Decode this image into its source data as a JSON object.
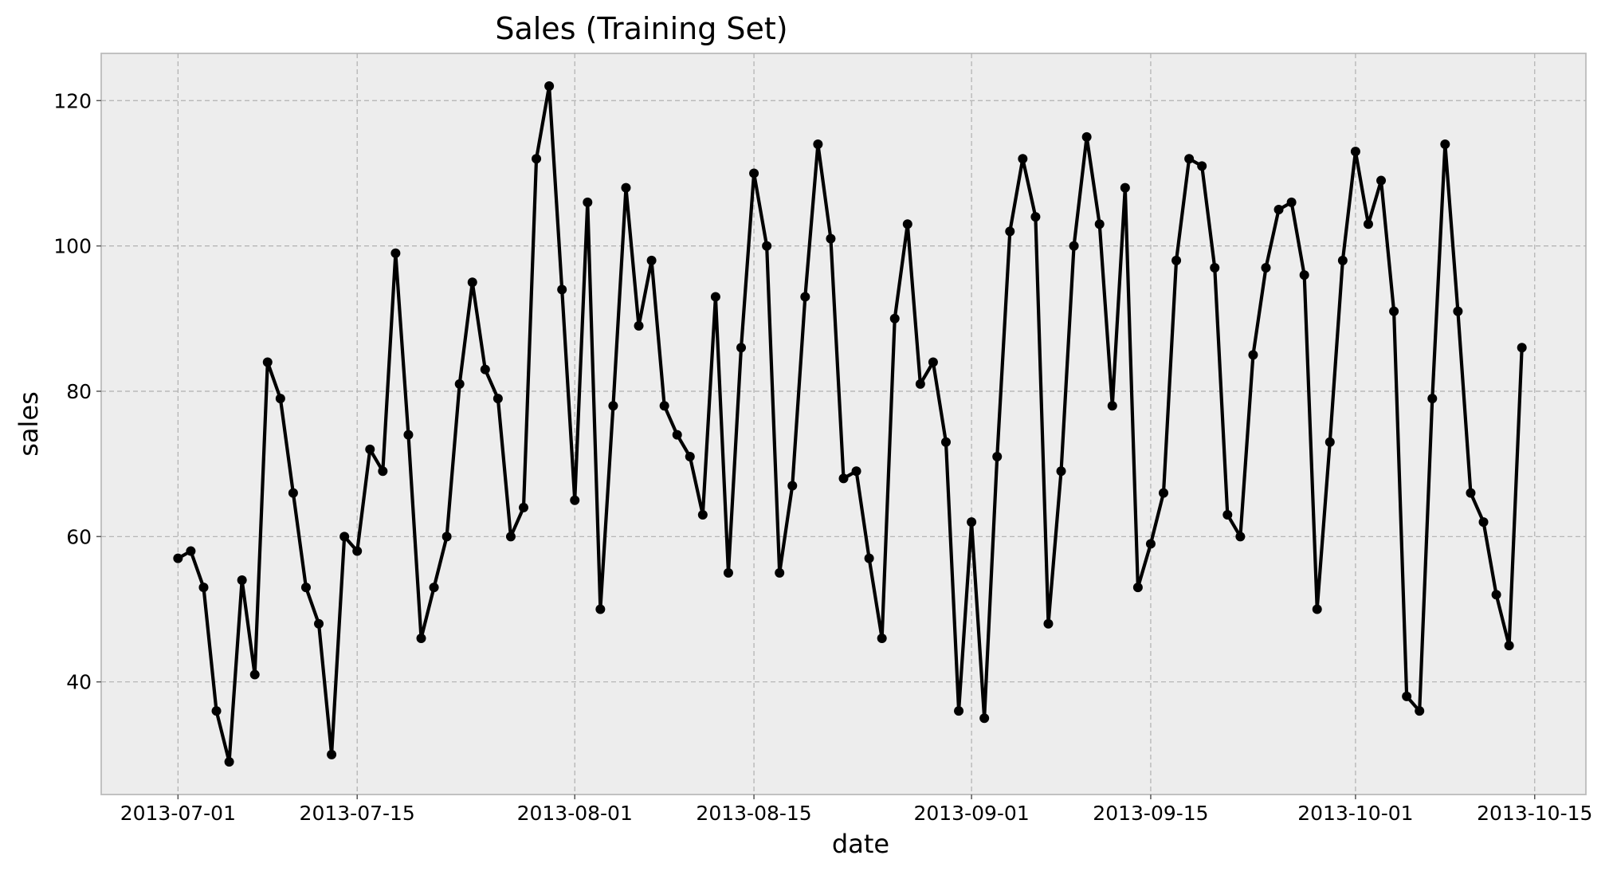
{
  "chart_data": {
    "type": "line",
    "title": "Sales (Training Set)",
    "xlabel": "date",
    "ylabel": "sales",
    "x_start": "2013-07-01",
    "x_tick_labels": [
      "2013-07-01",
      "2013-07-15",
      "2013-08-01",
      "2013-08-15",
      "2013-09-01",
      "2013-09-15",
      "2013-10-01",
      "2013-10-15"
    ],
    "y_ticks": [
      40,
      60,
      80,
      100,
      120
    ],
    "xlim": [
      "2013-06-25",
      "2013-10-19"
    ],
    "ylim": [
      24.5,
      126.5
    ],
    "grid": true,
    "series_color": "#000000",
    "background_color": "#ededed",
    "series": [
      {
        "values": [
          57,
          58,
          53,
          36,
          29,
          54,
          41,
          84,
          79,
          66,
          53,
          48,
          30,
          60,
          58,
          72,
          69,
          99,
          74,
          46,
          53,
          60,
          81,
          95,
          83,
          79,
          60,
          64,
          112,
          122,
          94,
          65,
          106,
          50,
          78,
          108,
          89,
          98,
          78,
          74,
          71,
          63,
          93,
          55,
          86,
          110,
          100,
          55,
          67,
          93,
          114,
          101,
          68,
          69,
          57,
          46,
          90,
          103,
          81,
          84,
          73,
          36,
          62,
          35,
          71,
          102,
          112,
          104,
          48,
          69,
          100,
          115,
          103,
          78,
          108,
          53,
          59,
          66,
          98,
          112,
          111,
          97,
          63,
          60,
          85,
          97,
          105,
          106,
          96,
          50,
          73,
          98,
          113,
          103,
          109,
          91,
          38,
          36,
          79,
          114,
          91,
          66,
          62,
          52,
          45,
          86
        ]
      }
    ]
  }
}
